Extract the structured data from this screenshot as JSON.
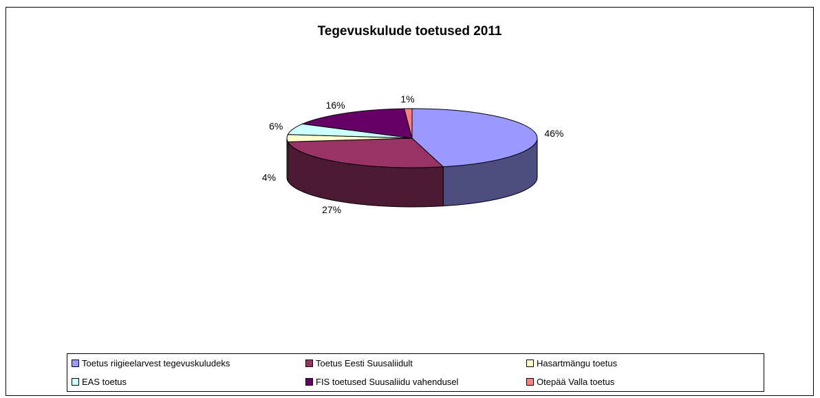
{
  "chart_data": {
    "type": "pie",
    "title": "Tegevuskulude toetused 2011",
    "categories": [
      "Toetus riigieelarvest tegevuskuludeks",
      "Toetus Eesti Suusaliidult",
      "Hasartmängu toetus",
      "EAS toetus",
      "FIS toetused Suusaliidu vahendusel",
      "Otepää Valla toetus"
    ],
    "values": [
      46,
      27,
      4,
      6,
      16,
      1
    ],
    "labels": [
      "46%",
      "27%",
      "4%",
      "6%",
      "16%",
      "1%"
    ],
    "colors": [
      "#9999ff",
      "#993366",
      "#ffffcc",
      "#ccffff",
      "#660066",
      "#ff8080"
    ],
    "legend_position": "bottom",
    "three_d": true
  }
}
